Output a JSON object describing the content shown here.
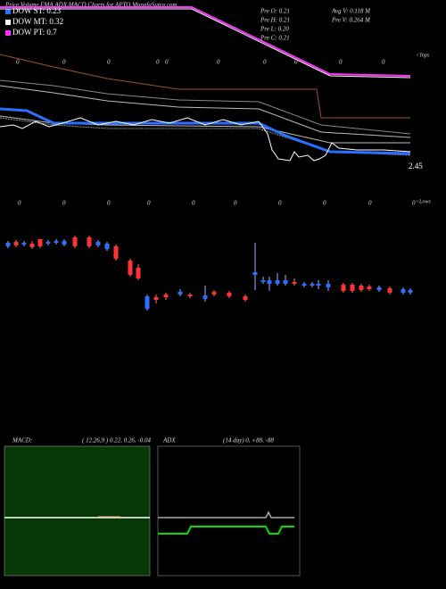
{
  "header": {
    "title": "Price,Volume,EMA,ADX,MACD Charts for APTO MunafaSutra.com"
  },
  "legend": [
    {
      "label": "DOW ST: 0.23",
      "color": "#2a6fff"
    },
    {
      "label": "DOW MT: 0.32",
      "color": "#ffffff"
    },
    {
      "label": "DOW PT: 0.7",
      "color": "#ff33ff"
    }
  ],
  "prev": [
    "Pre  O: 0.21",
    "Pre  H: 0.21",
    "Pre  L: 0.20",
    "Pre  C: 0.21"
  ],
  "volume": [
    "Avg V: 0.118  M",
    "Pre  V: 0.264  M"
  ],
  "tops": {
    "label": "<Tops",
    "markers": [
      "0",
      "0",
      "0",
      "0",
      "0",
      "0",
      "0",
      "0",
      "0",
      "0"
    ]
  },
  "lows": {
    "label": "<Lows",
    "markers": [
      "0",
      "0",
      "0",
      "0",
      "0",
      "0",
      "0",
      "0",
      "0",
      "0"
    ]
  },
  "price_label": "2.45",
  "macd": {
    "label": "MACD:",
    "params": "( 12,26,9 ) 0.22, 0.26, -0.04"
  },
  "adx": {
    "label": "ADX",
    "params": "(14  day) 0, +88, -88"
  }
}
